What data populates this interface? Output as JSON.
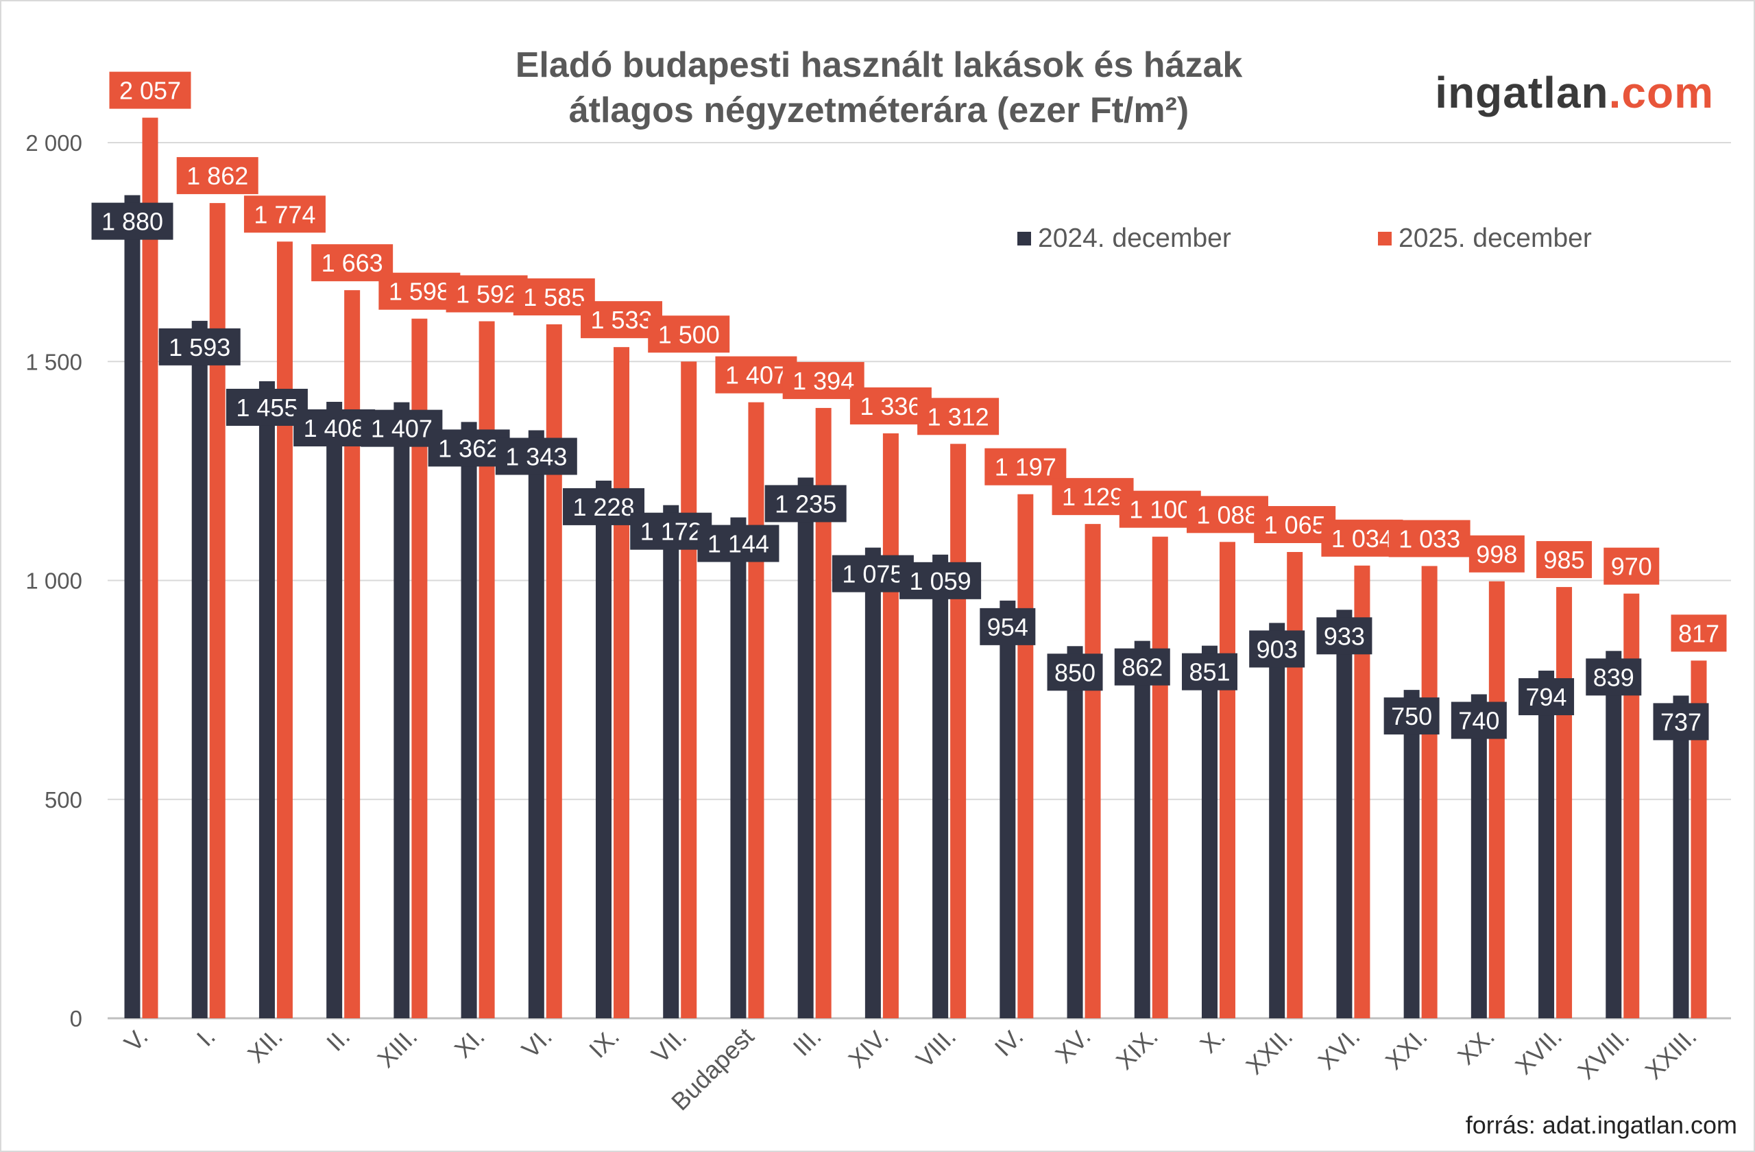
{
  "chart_data": {
    "type": "bar",
    "title_line1": "Eladó budapesti használt lakások és házak",
    "title_line2": "átlagos négyzetméterára (ezer Ft/m²)",
    "categories": [
      "V.",
      "I.",
      "XII.",
      "II.",
      "XIII.",
      "XI.",
      "VI.",
      "IX.",
      "VII.",
      "Budapest",
      "III.",
      "XIV.",
      "VIII.",
      "IV.",
      "XV.",
      "XIX.",
      "X.",
      "XXII.",
      "XVI.",
      "XXI.",
      "XX.",
      "XVII.",
      "XVIII.",
      "XXIII."
    ],
    "series": [
      {
        "name": "2024. december",
        "color": "#313545",
        "values": [
          1880,
          1593,
          1455,
          1408,
          1407,
          1362,
          1343,
          1228,
          1172,
          1144,
          1235,
          1075,
          1059,
          954,
          850,
          862,
          851,
          903,
          933,
          750,
          740,
          794,
          839,
          737
        ]
      },
      {
        "name": "2025. december",
        "color": "#e8553a",
        "values": [
          2057,
          1862,
          1774,
          1663,
          1598,
          1592,
          1585,
          1533,
          1500,
          1407,
          1394,
          1336,
          1312,
          1197,
          1129,
          1100,
          1088,
          1065,
          1034,
          1033,
          998,
          985,
          970,
          817
        ]
      }
    ],
    "yticks": [
      0,
      500,
      1000,
      1500,
      2000
    ],
    "ytick_labels": [
      "0",
      "500",
      "1 000",
      "1 500",
      "2 000"
    ],
    "ylim": [
      0,
      2000
    ],
    "grid": true,
    "legend_position": "top-right",
    "data_labels": true
  },
  "logo": {
    "part1": "ingatlan",
    "part2": ".com"
  },
  "source": "forrás: adat.ingatlan.com"
}
